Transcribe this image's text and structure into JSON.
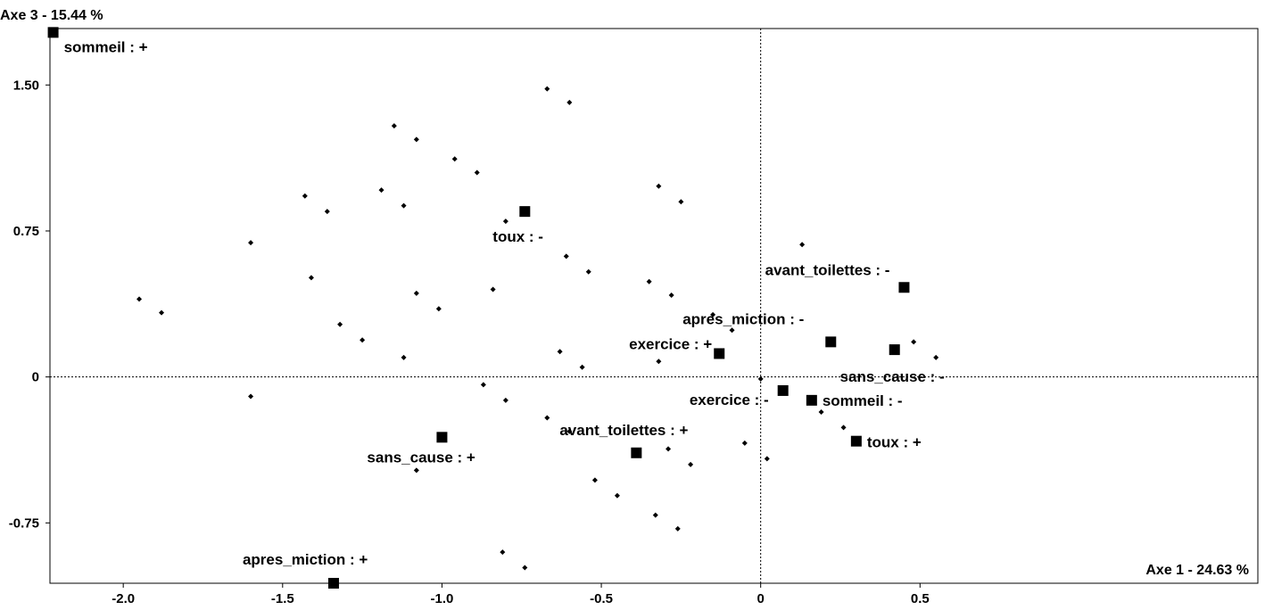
{
  "chart_data": {
    "type": "scatter",
    "title": "",
    "xlabel": "Axe 1  -  24.63 %",
    "ylabel": "Axe 3  -  15.44 %",
    "xlim": [
      -2.23,
      1.56
    ],
    "ylim": [
      -1.06,
      1.79
    ],
    "x_ticks": [
      {
        "value": -2.0,
        "label": "-2.0"
      },
      {
        "value": -1.5,
        "label": "-1.5"
      },
      {
        "value": -1.0,
        "label": "-1.0"
      },
      {
        "value": -0.5,
        "label": "-0.5"
      },
      {
        "value": 0,
        "label": "0"
      },
      {
        "value": 0.5,
        "label": "0.5"
      }
    ],
    "y_ticks": [
      {
        "value": 1.5,
        "label": "1.50"
      },
      {
        "value": 0.75,
        "label": "0.75"
      },
      {
        "value": 0,
        "label": "0"
      },
      {
        "value": -0.75,
        "label": "-0.75"
      }
    ],
    "grid": false,
    "reference_lines": {
      "x": 0,
      "y": 0
    },
    "categories": [
      {
        "label": "sommeil : +",
        "x": -2.22,
        "y": 1.77
      },
      {
        "label": "toux : -",
        "x": -0.74,
        "y": 0.85
      },
      {
        "label": "avant_toilettes : -",
        "x": 0.45,
        "y": 0.46
      },
      {
        "label": "apres_miction : -",
        "x": 0.22,
        "y": 0.18
      },
      {
        "label": "sans_cause : -",
        "x": 0.42,
        "y": 0.14
      },
      {
        "label": "exercice : +",
        "x": -0.13,
        "y": 0.12
      },
      {
        "label": "exercice : -",
        "x": 0.07,
        "y": -0.07
      },
      {
        "label": "sommeil : -",
        "x": 0.16,
        "y": -0.12
      },
      {
        "label": "toux : +",
        "x": 0.3,
        "y": -0.33
      },
      {
        "label": "sans_cause : +",
        "x": -1.0,
        "y": -0.31
      },
      {
        "label": "avant_toilettes : +",
        "x": -0.39,
        "y": -0.39
      },
      {
        "label": "apres_miction : +",
        "x": -1.34,
        "y": -1.06
      }
    ],
    "individuals": [
      {
        "x": -0.67,
        "y": 1.48
      },
      {
        "x": -0.6,
        "y": 1.41
      },
      {
        "x": -1.15,
        "y": 1.29
      },
      {
        "x": -1.08,
        "y": 1.22
      },
      {
        "x": -0.96,
        "y": 1.12
      },
      {
        "x": -0.89,
        "y": 1.05
      },
      {
        "x": -1.19,
        "y": 0.96
      },
      {
        "x": -1.12,
        "y": 0.88
      },
      {
        "x": -1.43,
        "y": 0.93
      },
      {
        "x": -1.36,
        "y": 0.85
      },
      {
        "x": -0.8,
        "y": 0.8
      },
      {
        "x": -0.32,
        "y": 0.98
      },
      {
        "x": -0.25,
        "y": 0.9
      },
      {
        "x": -1.6,
        "y": 0.69
      },
      {
        "x": -1.41,
        "y": 0.51
      },
      {
        "x": -0.61,
        "y": 0.62
      },
      {
        "x": -0.54,
        "y": 0.54
      },
      {
        "x": -0.35,
        "y": 0.49
      },
      {
        "x": -0.28,
        "y": 0.42
      },
      {
        "x": -1.95,
        "y": 0.4
      },
      {
        "x": -1.88,
        "y": 0.33
      },
      {
        "x": -1.08,
        "y": 0.43
      },
      {
        "x": -1.01,
        "y": 0.35
      },
      {
        "x": -0.84,
        "y": 0.45
      },
      {
        "x": -1.32,
        "y": 0.27
      },
      {
        "x": -1.25,
        "y": 0.19
      },
      {
        "x": -1.12,
        "y": 0.1
      },
      {
        "x": -0.63,
        "y": 0.13
      },
      {
        "x": -0.56,
        "y": 0.05
      },
      {
        "x": -0.32,
        "y": 0.08
      },
      {
        "x": -0.15,
        "y": 0.32
      },
      {
        "x": -0.09,
        "y": 0.24
      },
      {
        "x": 0.13,
        "y": 0.68
      },
      {
        "x": 0.48,
        "y": 0.18
      },
      {
        "x": 0.55,
        "y": 0.1
      },
      {
        "x": -0.0,
        "y": -0.01
      },
      {
        "x": -1.6,
        "y": -0.1
      },
      {
        "x": -0.87,
        "y": -0.04
      },
      {
        "x": -0.8,
        "y": -0.12
      },
      {
        "x": -0.67,
        "y": -0.21
      },
      {
        "x": -0.6,
        "y": -0.28
      },
      {
        "x": -1.08,
        "y": -0.48
      },
      {
        "x": -0.52,
        "y": -0.53
      },
      {
        "x": -0.45,
        "y": -0.61
      },
      {
        "x": -0.29,
        "y": -0.37
      },
      {
        "x": -0.22,
        "y": -0.45
      },
      {
        "x": -0.05,
        "y": -0.34
      },
      {
        "x": 0.02,
        "y": -0.42
      },
      {
        "x": 0.19,
        "y": -0.18
      },
      {
        "x": 0.26,
        "y": -0.26
      },
      {
        "x": -0.33,
        "y": -0.71
      },
      {
        "x": -0.26,
        "y": -0.78
      },
      {
        "x": -0.81,
        "y": -0.9
      },
      {
        "x": -0.74,
        "y": -0.98
      }
    ]
  }
}
